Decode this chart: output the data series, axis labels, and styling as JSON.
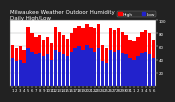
{
  "title": "Milwaukee Weather Outdoor Humidity",
  "subtitle": "Daily High/Low",
  "bar_high_color": "#FF0000",
  "bar_low_color": "#2222CC",
  "background_color": "#222222",
  "plot_bg_color": "#FFFFFF",
  "text_color": "#FFFFFF",
  "grid_color": "#AAAAAA",
  "highs": [
    62,
    58,
    60,
    55,
    90,
    80,
    75,
    78,
    70,
    75,
    65,
    90,
    82,
    78,
    72,
    80,
    88,
    92,
    88,
    95,
    90,
    88,
    95,
    62,
    58,
    88,
    85,
    88,
    82,
    78,
    70,
    68,
    75,
    82,
    85,
    80,
    70
  ],
  "lows": [
    42,
    38,
    40,
    35,
    58,
    52,
    48,
    50,
    45,
    48,
    40,
    55,
    52,
    48,
    45,
    52,
    58,
    60,
    55,
    62,
    58,
    52,
    58,
    38,
    35,
    55,
    52,
    55,
    50,
    48,
    42,
    40,
    45,
    50,
    52,
    48,
    42
  ],
  "xlabels": [
    "1",
    "2",
    "3",
    "4",
    "5",
    "6",
    "7",
    "8",
    "9",
    "10",
    "11",
    "12",
    "13",
    "14",
    "15",
    "16",
    "17",
    "18",
    "19",
    "20",
    "21",
    "22",
    "23",
    "24",
    "25",
    "26",
    "27",
    "28",
    "29",
    "30",
    "31",
    "1",
    "2",
    "3",
    "4",
    "5",
    "6"
  ],
  "ylim": [
    0,
    100
  ],
  "yticks": [
    20,
    40,
    60,
    80,
    100
  ],
  "legend_high": "High",
  "legend_low": "Low",
  "title_fontsize": 4.0,
  "axis_fontsize": 2.8,
  "legend_fontsize": 3.2,
  "bar_width": 0.85
}
